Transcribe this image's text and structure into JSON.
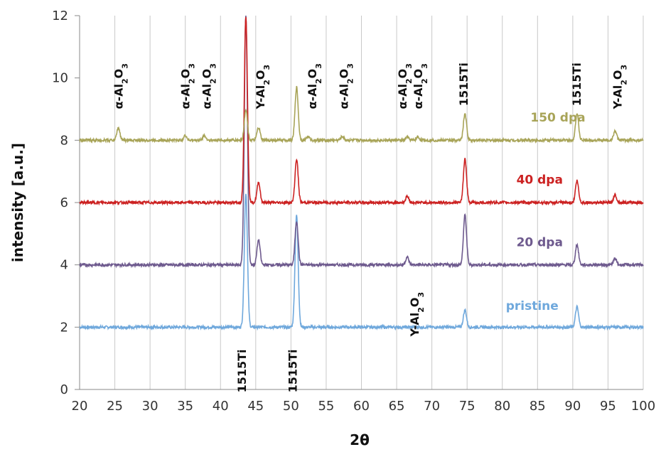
{
  "chart_data": {
    "type": "line",
    "xlabel": "2θ",
    "ylabel": "intensity [a.u.]",
    "xlim": [
      20,
      100
    ],
    "ylim": [
      0,
      12
    ],
    "xticks": [
      20,
      25,
      30,
      35,
      40,
      45,
      50,
      55,
      60,
      65,
      70,
      75,
      80,
      85,
      90,
      95,
      100
    ],
    "yticks": [
      0,
      2,
      4,
      6,
      8,
      10,
      12
    ],
    "grid": "vertical",
    "series": [
      {
        "name": "pristine",
        "color": "#6fa8dc",
        "baseline": 2.0,
        "peaks": [
          [
            43.6,
            4.3
          ],
          [
            50.8,
            3.6
          ],
          [
            74.7,
            0.55
          ],
          [
            90.6,
            0.65
          ]
        ]
      },
      {
        "name": "20 dpa",
        "color": "#6e5a8e",
        "baseline": 4.0,
        "peaks": [
          [
            43.6,
            8.0
          ],
          [
            45.4,
            0.8
          ],
          [
            50.8,
            1.4
          ],
          [
            66.5,
            0.25
          ],
          [
            74.7,
            1.6
          ],
          [
            90.6,
            0.65
          ],
          [
            96.0,
            0.2
          ]
        ]
      },
      {
        "name": "40 dpa",
        "color": "#cc2222",
        "baseline": 6.0,
        "peaks": [
          [
            43.6,
            6.0
          ],
          [
            45.4,
            0.65
          ],
          [
            50.8,
            1.4
          ],
          [
            66.5,
            0.2
          ],
          [
            74.7,
            1.4
          ],
          [
            90.6,
            0.7
          ],
          [
            96.0,
            0.25
          ]
        ]
      },
      {
        "name": "150 dpa",
        "color": "#a8a458",
        "baseline": 8.0,
        "peaks": [
          [
            25.5,
            0.4
          ],
          [
            35.0,
            0.15
          ],
          [
            37.7,
            0.15
          ],
          [
            43.6,
            1.0
          ],
          [
            45.4,
            0.4
          ],
          [
            50.8,
            1.7
          ],
          [
            52.4,
            0.12
          ],
          [
            57.3,
            0.12
          ],
          [
            66.5,
            0.1
          ],
          [
            68.0,
            0.1
          ],
          [
            74.7,
            0.85
          ],
          [
            90.6,
            0.85
          ],
          [
            96.0,
            0.3
          ]
        ]
      }
    ],
    "peak_labels": [
      {
        "x": 25.5,
        "y": 9.0,
        "prefix": "α-Al",
        "sub": "2",
        "mid": "O",
        "sub2": "3"
      },
      {
        "x": 35.0,
        "y": 9.0,
        "prefix": "α-Al",
        "sub": "2",
        "mid": "O",
        "sub2": "3"
      },
      {
        "x": 38.0,
        "y": 9.0,
        "prefix": "α-Al",
        "sub": "2",
        "mid": "O",
        "sub2": "3"
      },
      {
        "x": 45.6,
        "y": 9.0,
        "prefix": "Y-Al",
        "sub": "2",
        "mid": "O",
        "sub2": "3"
      },
      {
        "x": 53.0,
        "y": 9.0,
        "prefix": "α-Al",
        "sub": "2",
        "mid": "O",
        "sub2": "3"
      },
      {
        "x": 57.5,
        "y": 9.0,
        "prefix": "α-Al",
        "sub": "2",
        "mid": "O",
        "sub2": "3"
      },
      {
        "x": 65.8,
        "y": 9.0,
        "prefix": "α-Al",
        "sub": "2",
        "mid": "O",
        "sub2": "3"
      },
      {
        "x": 68.0,
        "y": 9.0,
        "prefix": "α-Al",
        "sub": "2",
        "mid": "O",
        "sub2": "3"
      },
      {
        "x": 74.5,
        "y": 9.1,
        "prefix": "1515Ti",
        "sub": "",
        "mid": "",
        "sub2": ""
      },
      {
        "x": 90.5,
        "y": 9.1,
        "prefix": "1515Ti",
        "sub": "",
        "mid": "",
        "sub2": ""
      },
      {
        "x": 96.3,
        "y": 9.0,
        "prefix": "Y-Al",
        "sub": "2",
        "mid": "O",
        "sub2": "3"
      },
      {
        "x": 67.5,
        "y": 1.7,
        "prefix": "Y-Al",
        "sub": "2",
        "mid": "O",
        "sub2": "3"
      },
      {
        "x": 43.0,
        "y": -0.1,
        "prefix": "1515Ti",
        "sub": "",
        "mid": "",
        "sub2": ""
      },
      {
        "x": 50.2,
        "y": -0.1,
        "prefix": "1515Ti",
        "sub": "",
        "mid": "",
        "sub2": ""
      }
    ],
    "series_labels": [
      {
        "text": "150 dpa",
        "x": 84.0,
        "y": 8.6,
        "color": "#a8a458"
      },
      {
        "text": "40 dpa",
        "x": 82.0,
        "y": 6.6,
        "color": "#cc2222"
      },
      {
        "text": "20 dpa",
        "x": 82.0,
        "y": 4.6,
        "color": "#6e5a8e"
      },
      {
        "text": "pristine",
        "x": 80.5,
        "y": 2.55,
        "color": "#6fa8dc"
      }
    ]
  }
}
